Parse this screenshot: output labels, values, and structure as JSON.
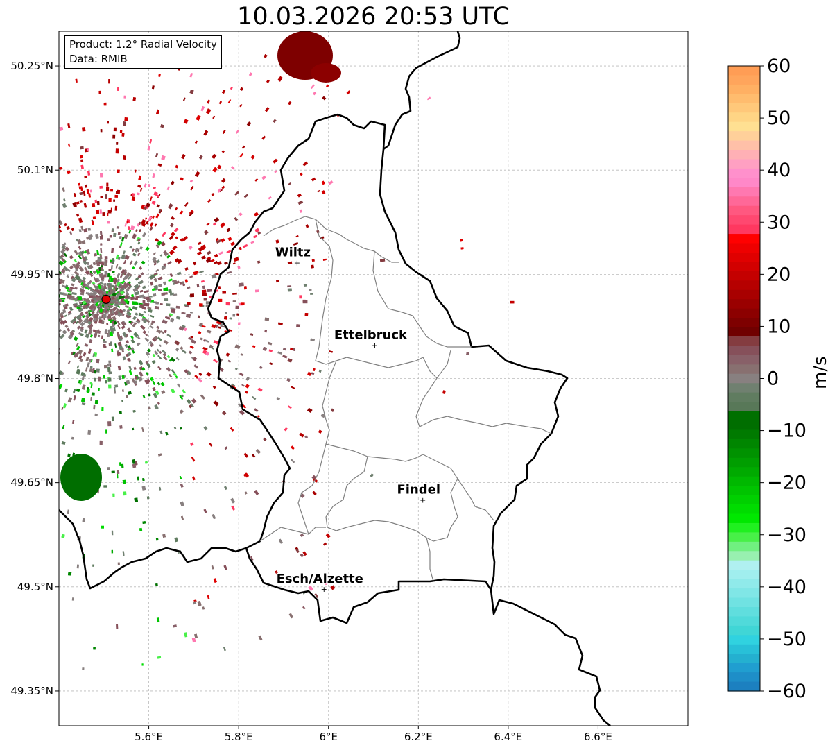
{
  "title": "10.03.2026 20:53 UTC",
  "info": {
    "product": "Product: 1.2° Radial Velocity",
    "data": "Data: RMIB"
  },
  "map": {
    "lon_range": [
      5.4,
      6.8
    ],
    "lat_range": [
      49.3,
      50.3
    ],
    "lon_ticks": [
      {
        "value": 5.6,
        "label": "5.6°E"
      },
      {
        "value": 5.8,
        "label": "5.8°E"
      },
      {
        "value": 6.0,
        "label": "6°E"
      },
      {
        "value": 6.2,
        "label": "6.2°E"
      },
      {
        "value": 6.4,
        "label": "6.4°E"
      },
      {
        "value": 6.6,
        "label": "6.6°E"
      }
    ],
    "lat_ticks": [
      {
        "value": 50.25,
        "label": "50.25°N"
      },
      {
        "value": 50.1,
        "label": "50.1°N"
      },
      {
        "value": 49.95,
        "label": "49.95°N"
      },
      {
        "value": 49.8,
        "label": "49.8°N"
      },
      {
        "value": 49.65,
        "label": "49.65°N"
      },
      {
        "value": 49.5,
        "label": "49.5°N"
      },
      {
        "value": 49.35,
        "label": "49.35°N"
      }
    ],
    "radar_site": {
      "lon": 5.505,
      "lat": 49.914,
      "color": "#e00000"
    },
    "cities": [
      {
        "name": "Wiltz",
        "lon": 5.93,
        "lat": 49.967
      },
      {
        "name": "Ettelbruck",
        "lon": 6.103,
        "lat": 49.848
      },
      {
        "name": "Findel",
        "lon": 6.21,
        "lat": 49.625
      },
      {
        "name": "Esch/Alzette",
        "lon": 5.99,
        "lat": 49.497
      }
    ],
    "grid": true
  },
  "colorbar": {
    "label": "m/s",
    "vmin": -60,
    "vmax": 60,
    "ticks": [
      {
        "value": 60,
        "label": "60"
      },
      {
        "value": 50,
        "label": "50"
      },
      {
        "value": 40,
        "label": "40"
      },
      {
        "value": 30,
        "label": "30"
      },
      {
        "value": 20,
        "label": "20"
      },
      {
        "value": 10,
        "label": "10"
      },
      {
        "value": 0,
        "label": "0"
      },
      {
        "value": -10,
        "label": "−10"
      },
      {
        "value": -20,
        "label": "−20"
      },
      {
        "value": -30,
        "label": "−30"
      },
      {
        "value": -40,
        "label": "−40"
      },
      {
        "value": -50,
        "label": "−50"
      },
      {
        "value": -60,
        "label": "−60"
      }
    ],
    "colors_top_to_bottom": [
      "#ff9d55",
      "#ffa55c",
      "#ffb063",
      "#ffbc6e",
      "#ffc87a",
      "#ffd585",
      "#ffe092",
      "#ffd09a",
      "#ffc0a8",
      "#ffb0b5",
      "#ffa0c2",
      "#ff90cc",
      "#ff88c8",
      "#ff78b0",
      "#ff6898",
      "#ff5880",
      "#ff4870",
      "#ff3860",
      "#ff0000",
      "#ee0000",
      "#e00000",
      "#d20000",
      "#c40000",
      "#b60000",
      "#a80000",
      "#9a0000",
      "#8c0000",
      "#7e0000",
      "#700000",
      "#843c40",
      "#86505a",
      "#886068",
      "#887070",
      "#888080",
      "#708070",
      "#607c60",
      "#587858",
      "#007000",
      "#006e00",
      "#007a00",
      "#008600",
      "#009200",
      "#009e00",
      "#00aa00",
      "#00b800",
      "#00c400",
      "#00d000",
      "#00dc00",
      "#00e800",
      "#20f020",
      "#48f048",
      "#70f080",
      "#98f0b0",
      "#b0f0f0",
      "#a0eeee",
      "#90eaea",
      "#80e6e6",
      "#70e2e2",
      "#60dede",
      "#50dada",
      "#40d6d6",
      "#30d2e0",
      "#28c0d8",
      "#24b0d0",
      "#209ed0",
      "#1e8ec8",
      "#1c80c0"
    ]
  }
}
